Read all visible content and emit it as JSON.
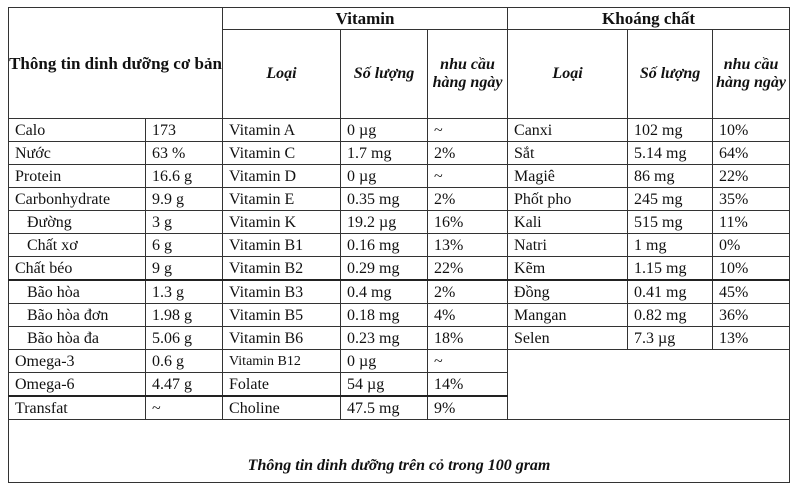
{
  "header": {
    "basic_title": "Thông tin dinh dưỡng cơ bản",
    "vitamin_title": "Vitamin",
    "mineral_title": "Khoáng chất",
    "col_type": "Loại",
    "col_amount": "Số lượng",
    "col_daily": "nhu cầu hàng ngày"
  },
  "basic": [
    {
      "name": "Calo",
      "value": "173"
    },
    {
      "name": "Nước",
      "value": "63 %"
    },
    {
      "name": "Protein",
      "value": "16.6 g"
    },
    {
      "name": "Carbonhydrate",
      "value": "9.9 g"
    },
    {
      "name": "Đường",
      "value": "3 g"
    },
    {
      "name": "Chất xơ",
      "value": "6 g"
    },
    {
      "name": "Chất béo",
      "value": "9 g"
    },
    {
      "name": "Bão hòa",
      "value": "1.3 g"
    },
    {
      "name": "Bão hòa đơn",
      "value": "1.98 g"
    },
    {
      "name": "Bão hòa đa",
      "value": "5.06 g"
    },
    {
      "name": "Omega-3",
      "value": "0.6 g"
    },
    {
      "name": "Omega-6",
      "value": "4.47 g"
    },
    {
      "name": "Transfat",
      "value": "~"
    }
  ],
  "vitamins": [
    {
      "name": "Vitamin A",
      "amount": "0 µg",
      "daily": "~"
    },
    {
      "name": "Vitamin C",
      "amount": "1.7 mg",
      "daily": "2%"
    },
    {
      "name": "Vitamin D",
      "amount": "0 µg",
      "daily": "~"
    },
    {
      "name": "Vitamin E",
      "amount": "0.35 mg",
      "daily": "2%"
    },
    {
      "name": "Vitamin K",
      "amount": "19.2 µg",
      "daily": "16%"
    },
    {
      "name": "Vitamin B1",
      "amount": "0.16 mg",
      "daily": "13%"
    },
    {
      "name": "Vitamin B2",
      "amount": "0.29 mg",
      "daily": "22%"
    },
    {
      "name": "Vitamin B3",
      "amount": "0.4 mg",
      "daily": "2%"
    },
    {
      "name": "Vitamin B5",
      "amount": "0.18 mg",
      "daily": "4%"
    },
    {
      "name": "Vitamin B6",
      "amount": "0.23 mg",
      "daily": "18%"
    },
    {
      "name": "Vitamin B12",
      "amount": "0 µg",
      "daily": "~"
    },
    {
      "name": "Folate",
      "amount": "54 µg",
      "daily": "14%"
    },
    {
      "name": "Choline",
      "amount": "47.5 mg",
      "daily": "9%"
    }
  ],
  "minerals": [
    {
      "name": "Canxi",
      "amount": "102 mg",
      "daily": "10%"
    },
    {
      "name": "Sắt",
      "amount": "5.14 mg",
      "daily": "64%"
    },
    {
      "name": "Magiê",
      "amount": "86 mg",
      "daily": "22%"
    },
    {
      "name": "Phốt pho",
      "amount": "245 mg",
      "daily": "35%"
    },
    {
      "name": "Kali",
      "amount": "515 mg",
      "daily": "11%"
    },
    {
      "name": "Natri",
      "amount": "1 mg",
      "daily": "0%"
    },
    {
      "name": "Kẽm",
      "amount": "1.15 mg",
      "daily": "10%"
    },
    {
      "name": "Đồng",
      "amount": "0.41 mg",
      "daily": "45%"
    },
    {
      "name": "Mangan",
      "amount": "0.82 mg",
      "daily": "36%"
    },
    {
      "name": "Selen",
      "amount": "7.3 µg",
      "daily": "13%"
    }
  ],
  "footer": "Thông tin dinh dưỡng trên cỏ trong 100 gram"
}
